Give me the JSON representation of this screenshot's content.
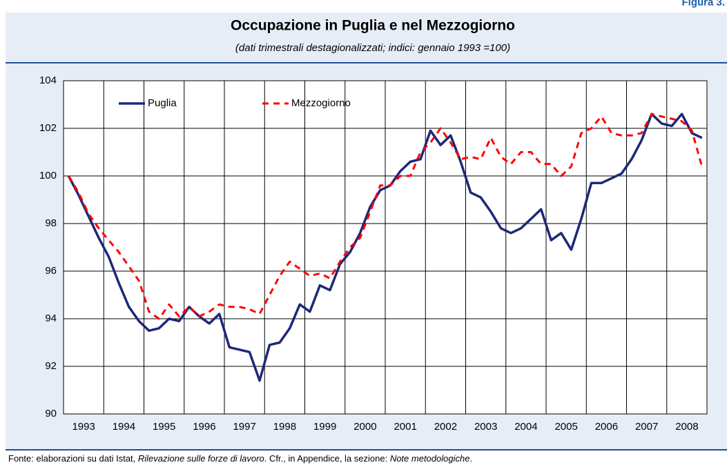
{
  "figure_label": "Figura 3.",
  "chart_data": {
    "type": "line",
    "title": "Occupazione in Puglia e nel Mezzogiorno",
    "subtitle": "(dati trimestrali destagionalizzati; indici: gennaio 1993 =100)",
    "categories": [
      null,
      "1993",
      null,
      null,
      null,
      "1994",
      null,
      null,
      null,
      "1995",
      null,
      null,
      null,
      "1996",
      null,
      null,
      null,
      "1997",
      null,
      null,
      null,
      "1998",
      null,
      null,
      null,
      "1999",
      null,
      null,
      null,
      "2000",
      null,
      null,
      null,
      "2001",
      null,
      null,
      null,
      "2002",
      null,
      null,
      null,
      "2003",
      null,
      null,
      null,
      "2004",
      null,
      null,
      null,
      "2005",
      null,
      null,
      null,
      "2006",
      null,
      null,
      null,
      "2007",
      null,
      null,
      null,
      "2008",
      null,
      null
    ],
    "series": [
      {
        "name": "Puglia",
        "color": "#1c2878",
        "dashed": false,
        "values": [
          100.0,
          99.2,
          98.3,
          97.4,
          96.6,
          95.5,
          94.5,
          93.9,
          93.5,
          93.6,
          94.0,
          93.9,
          94.5,
          94.1,
          93.8,
          94.2,
          92.8,
          92.7,
          92.6,
          91.4,
          92.9,
          93.0,
          93.6,
          94.6,
          94.3,
          95.4,
          95.2,
          96.3,
          96.8,
          97.6,
          98.7,
          99.4,
          99.6,
          100.2,
          100.6,
          100.7,
          101.9,
          101.3,
          101.7,
          100.6,
          99.3,
          99.1,
          98.5,
          97.8,
          97.6,
          97.8,
          98.2,
          98.6,
          97.3,
          97.6,
          96.9,
          98.2,
          99.7,
          99.7,
          99.9,
          100.1,
          100.7,
          101.5,
          102.6,
          102.2,
          102.1,
          102.6,
          101.8,
          101.6
        ]
      },
      {
        "name": "Mezzogiorno",
        "color": "#ff0000",
        "dashed": true,
        "values": [
          100.0,
          99.3,
          98.4,
          97.8,
          97.3,
          96.8,
          96.2,
          95.6,
          94.3,
          94.0,
          94.6,
          94.1,
          94.5,
          94.1,
          94.3,
          94.6,
          94.5,
          94.5,
          94.4,
          94.2,
          95.0,
          95.8,
          96.4,
          96.1,
          95.8,
          95.9,
          95.7,
          96.4,
          97.0,
          97.4,
          98.5,
          99.6,
          99.6,
          100.0,
          100.0,
          101.0,
          101.4,
          102.0,
          101.4,
          100.7,
          100.8,
          100.7,
          101.6,
          100.8,
          100.5,
          101.0,
          101.0,
          100.5,
          100.5,
          100.0,
          100.4,
          101.8,
          102.0,
          102.5,
          101.8,
          101.7,
          101.7,
          101.8,
          102.6,
          102.5,
          102.4,
          102.3,
          101.9,
          100.4
        ]
      }
    ],
    "ylim": [
      90,
      104
    ],
    "yticks": [
      90,
      92,
      94,
      96,
      98,
      100,
      102,
      104
    ],
    "grid": true,
    "legend": "top"
  },
  "footer": [
    "Fonte: elaborazioni su dati Istat, ",
    "Rilevazione sulle forze di lavoro",
    ". Cfr., in Appendice, la sezione: ",
    "Note metodologiche",
    "."
  ]
}
